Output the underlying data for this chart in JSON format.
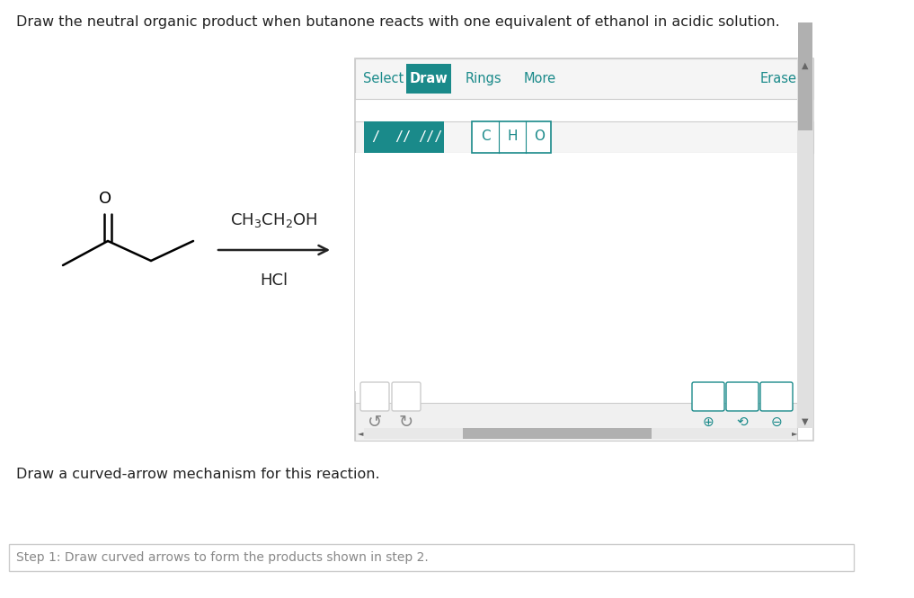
{
  "bg_color": "#f0f0f0",
  "page_bg": "#ffffff",
  "title_text": "Draw the neutral organic product when butanone reacts with one equivalent of ethanol in acidic solution.",
  "title_color": "#222222",
  "title_fontsize": 11.5,
  "reagent_line1": "CH₃CH₂OH",
  "reagent_line2": "HCl",
  "reagent_color": "#222222",
  "reagent_fontsize": 13,
  "arrow_color": "#222222",
  "panel_bg": "#ffffff",
  "panel_border": "#cccccc",
  "toolbar_bg": "#f8f8f8",
  "teal": "#1a8a8a",
  "teal_dark": "#0d6e6e",
  "btn_border": "#1a8a8a",
  "select_text": "Select",
  "draw_text": "Draw",
  "rings_text": "Rings",
  "more_text": "More",
  "erase_text": "Erase",
  "bottom_text1": "Draw a curved-arrow mechanism for this reaction.",
  "bottom_text2": "Step 1: Draw curved arrows to form the products shown in step 2.",
  "scrollbar_color": "#b0b0b0",
  "scrollbar_bg": "#e8e8e8"
}
